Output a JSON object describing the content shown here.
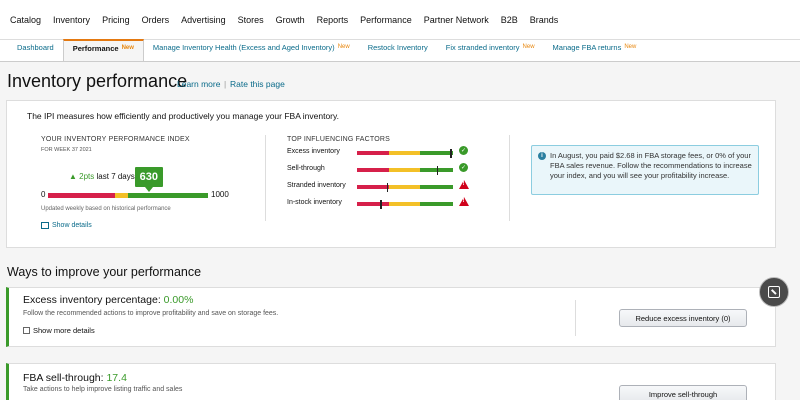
{
  "topnav": [
    "Catalog",
    "Inventory",
    "Pricing",
    "Orders",
    "Advertising",
    "Stores",
    "Growth",
    "Reports",
    "Performance",
    "Partner Network",
    "B2B",
    "Brands"
  ],
  "tabs": [
    {
      "label": "Dashboard",
      "new": ""
    },
    {
      "label": "Performance",
      "new": "New"
    },
    {
      "label": "Manage Inventory Health (Excess and Aged Inventory)",
      "new": "New"
    },
    {
      "label": "Restock Inventory",
      "new": ""
    },
    {
      "label": "Fix stranded inventory",
      "new": "New"
    },
    {
      "label": "Manage FBA returns",
      "new": "New"
    }
  ],
  "header": {
    "title": "Inventory performance",
    "learn_more": "Learn more",
    "separator": "|",
    "rate_page": "Rate this page"
  },
  "ipi": {
    "description": "The IPI measures how efficiently and productively you manage your FBA inventory.",
    "label": "YOUR INVENTORY PERFORMANCE INDEX",
    "week": "FOR WEEK 37 2021",
    "change_pts": "2pts",
    "change_period": "last 7 days",
    "score": "630",
    "scale_min": "0",
    "scale_max": "1000",
    "updated": "Updated weekly based on historical performance",
    "show_details": "Show details",
    "score_fraction": 0.63
  },
  "factors": {
    "title": "TOP INFLUENCING FACTORS",
    "items": [
      {
        "label": "Excess inventory",
        "status": "ok",
        "level": 0.97
      },
      {
        "label": "Sell-through",
        "status": "ok",
        "level": 0.83
      },
      {
        "label": "Stranded inventory",
        "status": "warning",
        "level": 0.31
      },
      {
        "label": "In-stock inventory",
        "status": "warning",
        "level": 0.24
      }
    ]
  },
  "info_box": {
    "text": "In August, you paid $2.68 in FBA storage fees, or 0% of your FBA sales revenue. Follow the recommendations to increase your index, and you will see your profitability increase."
  },
  "ways": {
    "title": "Ways to improve your performance",
    "cards": [
      {
        "title": "Excess inventory percentage:",
        "value": "0.00%",
        "description": "Follow the recommended actions to improve profitability and save on storage fees.",
        "checkbox": "Show more details",
        "button": "Reduce excess inventory (0)"
      },
      {
        "title": "FBA sell-through:",
        "value": "17.4",
        "description": "Take actions to help improve listing traffic and sales",
        "button": "Improve sell-through"
      }
    ]
  },
  "colors": {
    "accent_green": "#3a9a2a",
    "accent_red": "#d6204a",
    "accent_yellow": "#f3c027",
    "link": "#0a6b8a",
    "tab_new": "#e8870e"
  }
}
